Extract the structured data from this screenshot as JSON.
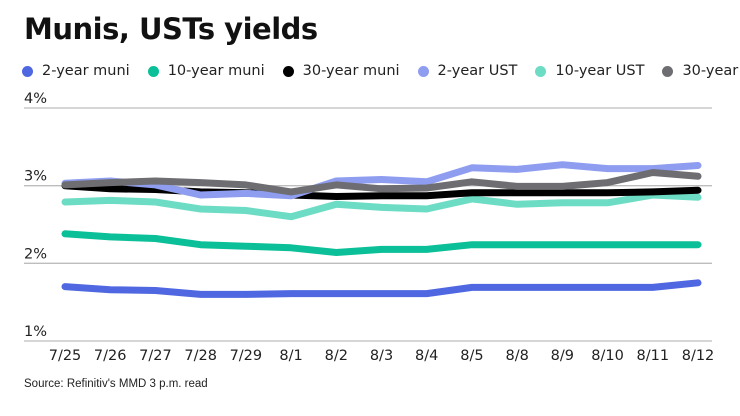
{
  "chart_data": {
    "type": "line",
    "title": "Munis, USTs yields",
    "xlabel": "",
    "ylabel": "",
    "ylim": [
      1,
      4
    ],
    "yticks": [
      "4%",
      "3%",
      "2%",
      "1%"
    ],
    "ytick_values": [
      4,
      3,
      2,
      1
    ],
    "grid": true,
    "legend_position": "top",
    "categories": [
      "7/25",
      "7/26",
      "7/27",
      "7/28",
      "7/29",
      "8/1",
      "8/2",
      "8/3",
      "8/4",
      "8/5",
      "8/8",
      "8/9",
      "8/10",
      "8/11",
      "8/12"
    ],
    "series": [
      {
        "name": "2-year muni",
        "color": "#4f67e0",
        "values": [
          1.7,
          1.66,
          1.65,
          1.6,
          1.6,
          1.61,
          1.61,
          1.61,
          1.61,
          1.69,
          1.69,
          1.69,
          1.69,
          1.69,
          1.75
        ]
      },
      {
        "name": "10-year muni",
        "color": "#0bbf98",
        "values": [
          2.38,
          2.34,
          2.32,
          2.24,
          2.22,
          2.2,
          2.14,
          2.18,
          2.18,
          2.24,
          2.24,
          2.24,
          2.24,
          2.24,
          2.24
        ]
      },
      {
        "name": "30-year muni",
        "color": "#000000",
        "values": [
          3.0,
          2.96,
          2.95,
          2.92,
          2.91,
          2.88,
          2.86,
          2.87,
          2.87,
          2.91,
          2.91,
          2.91,
          2.91,
          2.92,
          2.94
        ]
      },
      {
        "name": "2-year UST",
        "color": "#8f9df0",
        "values": [
          3.03,
          3.06,
          3.01,
          2.88,
          2.9,
          2.87,
          3.06,
          3.08,
          3.05,
          3.23,
          3.21,
          3.27,
          3.22,
          3.22,
          3.26
        ]
      },
      {
        "name": "10-year UST",
        "color": "#6ddcc4",
        "values": [
          2.79,
          2.81,
          2.79,
          2.7,
          2.68,
          2.6,
          2.76,
          2.72,
          2.7,
          2.83,
          2.76,
          2.78,
          2.78,
          2.88,
          2.85
        ]
      },
      {
        "name": "30-year UST",
        "color": "#6e6e72",
        "values": [
          3.01,
          3.04,
          3.06,
          3.04,
          3.01,
          2.92,
          3.01,
          2.96,
          2.97,
          3.05,
          2.99,
          2.99,
          3.04,
          3.17,
          3.12
        ]
      }
    ],
    "source": "Source: Refinitiv's MMD 3 p.m. read"
  }
}
